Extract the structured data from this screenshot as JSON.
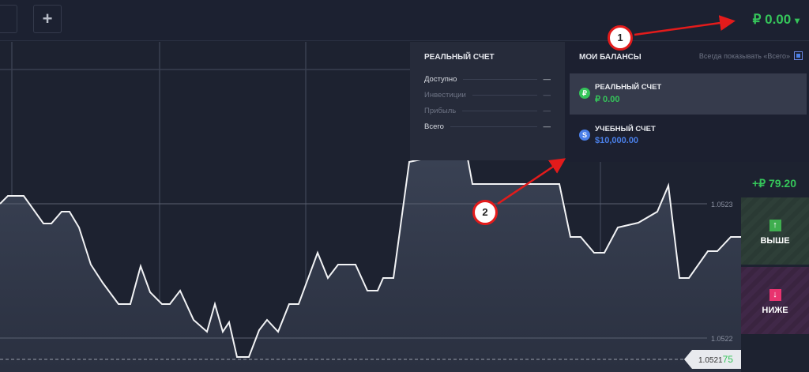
{
  "topbar": {
    "add_tab_label": "+",
    "balance": "₽ 0.00",
    "balance_caret": "▾"
  },
  "real_panel": {
    "title": "РЕАЛЬНЫЙ СЧЕТ",
    "rows": [
      {
        "label": "Доступно",
        "value": "—"
      },
      {
        "label": "Инвестиции",
        "value": "—"
      },
      {
        "label": "Прибыль",
        "value": "—"
      },
      {
        "label": "Всего",
        "value": "—"
      }
    ]
  },
  "balances_panel": {
    "title": "МОИ БАЛАНСЫ",
    "always_show_label": "Всегда показывать «Всего»",
    "always_show_checked": true,
    "accounts": [
      {
        "name": "РЕАЛЬНЫЙ СЧЕТ",
        "amount": "₽ 0.00",
        "icon": "₽",
        "color": "#35c55a",
        "selected": true
      },
      {
        "name": "УЧЕБНЫЙ СЧЕТ",
        "amount": "$10,000.00",
        "icon": "S",
        "color": "#4a7fe8",
        "selected": false
      }
    ]
  },
  "trade": {
    "profit": "+₽ 79.20",
    "up_label": "ВЫШЕ",
    "down_label": "НИЖЕ"
  },
  "chart": {
    "price_levels": [
      "1.0523",
      "1.0522"
    ],
    "current_price_main": "1.0521",
    "current_price_tail": "75"
  },
  "annotations": {
    "first": "1",
    "second": "2"
  },
  "colors": {
    "green": "#35c55a",
    "blue": "#4a7fe8",
    "up": "#3fae4f",
    "down": "#e8336f",
    "annotation": "#e31b1b"
  }
}
